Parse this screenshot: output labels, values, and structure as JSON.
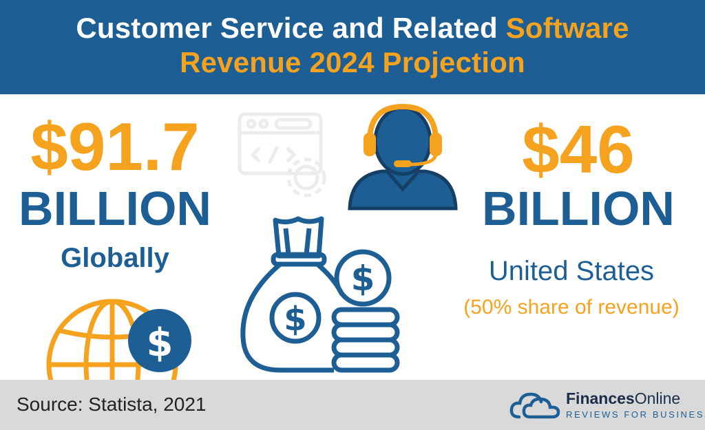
{
  "header": {
    "title_part1": "Customer Service and Related ",
    "title_accent1": "Software",
    "title_accent2": "Revenue 2024 Projection"
  },
  "global_stat": {
    "value": "$91.7",
    "unit": "BILLION",
    "label": "Globally"
  },
  "us_stat": {
    "value": "$46",
    "unit": "BILLION",
    "label": "United States",
    "note": "(50% share of revenue)"
  },
  "footer": {
    "source": "Source: Statista, 2021",
    "logo_bold": "Finances",
    "logo_light": "Online",
    "logo_tagline": "REVIEWS FOR BUSINESS"
  },
  "colors": {
    "header_bg": "#1d5f95",
    "accent_orange": "#f5a21f",
    "primary_blue": "#1d5f95",
    "footer_bg": "#d9d9d9"
  },
  "icons": [
    "code-window-gear-icon",
    "headset-agent-icon",
    "money-bag-coins-icon",
    "globe-dollar-icon",
    "cloud-logo-icon"
  ]
}
